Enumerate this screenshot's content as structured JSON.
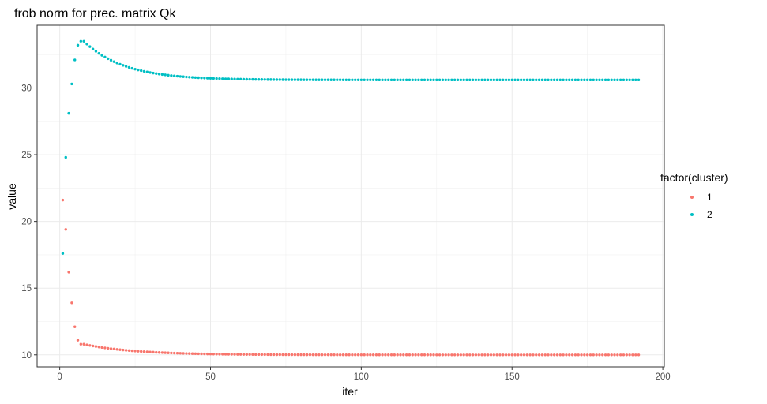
{
  "chart_data": {
    "type": "scatter",
    "title": "frob norm for prec. matrix Qk",
    "xlabel": "iter",
    "ylabel": "value",
    "xlim": [
      -7.5,
      200.5
    ],
    "ylim": [
      9.1,
      34.7
    ],
    "xticks": [
      0,
      50,
      100,
      150,
      200
    ],
    "yticks": [
      10,
      15,
      20,
      25,
      30
    ],
    "grid": true,
    "legend": {
      "title": "factor(cluster)",
      "position": "right",
      "entries": [
        "1",
        "2"
      ]
    },
    "series": [
      {
        "name": "1",
        "color": "#F8766D",
        "x_start": 1,
        "x_end": 192,
        "initial_values": [
          21.6,
          19.4,
          16.2,
          13.9,
          12.1,
          11.1,
          10.8,
          10.8
        ],
        "decay_to": 10.0,
        "decay_rate": 0.06
      },
      {
        "name": "2",
        "color": "#00BFC4",
        "x_start": 1,
        "x_end": 192,
        "initial_values": [
          17.6,
          24.8,
          28.1,
          30.3,
          32.1,
          33.2,
          33.5,
          33.5
        ],
        "decay_to": 30.6,
        "decay_rate": 0.075
      }
    ]
  }
}
